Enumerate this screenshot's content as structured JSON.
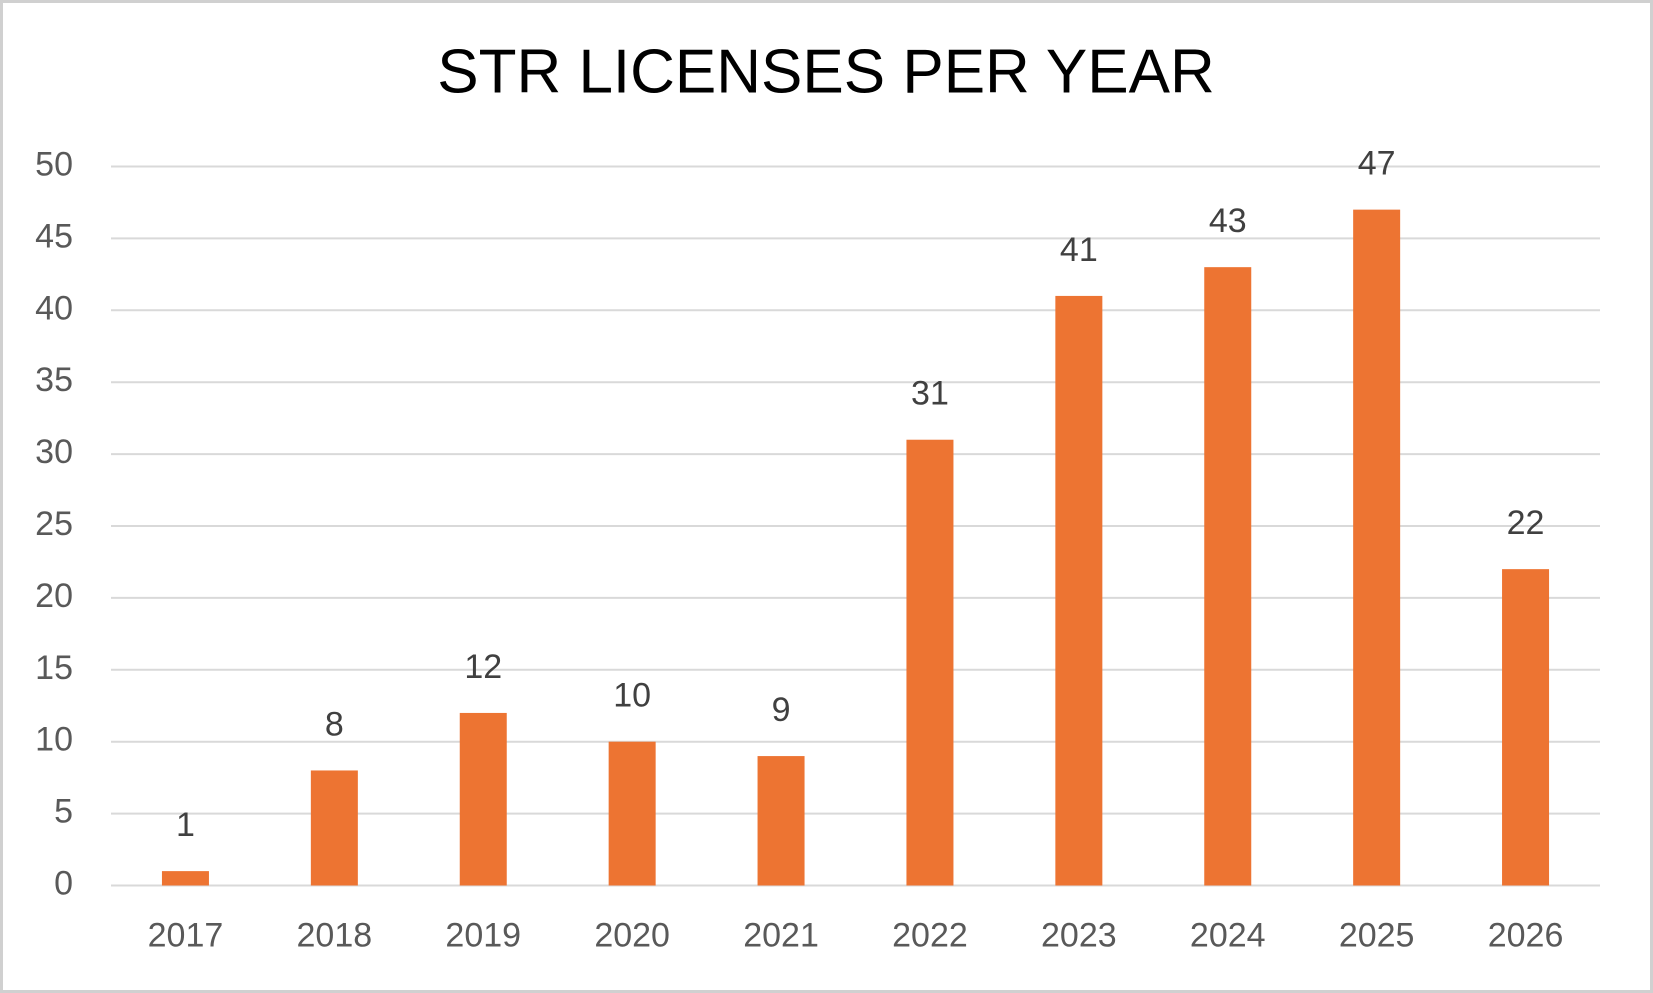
{
  "chart_data": {
    "type": "bar",
    "title": "STR LICENSES PER YEAR",
    "categories": [
      "2017",
      "2018",
      "2019",
      "2020",
      "2021",
      "2022",
      "2023",
      "2024",
      "2025",
      "2026"
    ],
    "values": [
      1,
      8,
      12,
      10,
      9,
      31,
      41,
      43,
      47,
      22
    ],
    "color": "#ed7432",
    "ylim": [
      0,
      50
    ],
    "yticks": [
      0,
      5,
      10,
      15,
      20,
      25,
      30,
      35,
      40,
      45,
      50
    ],
    "grid": true
  }
}
